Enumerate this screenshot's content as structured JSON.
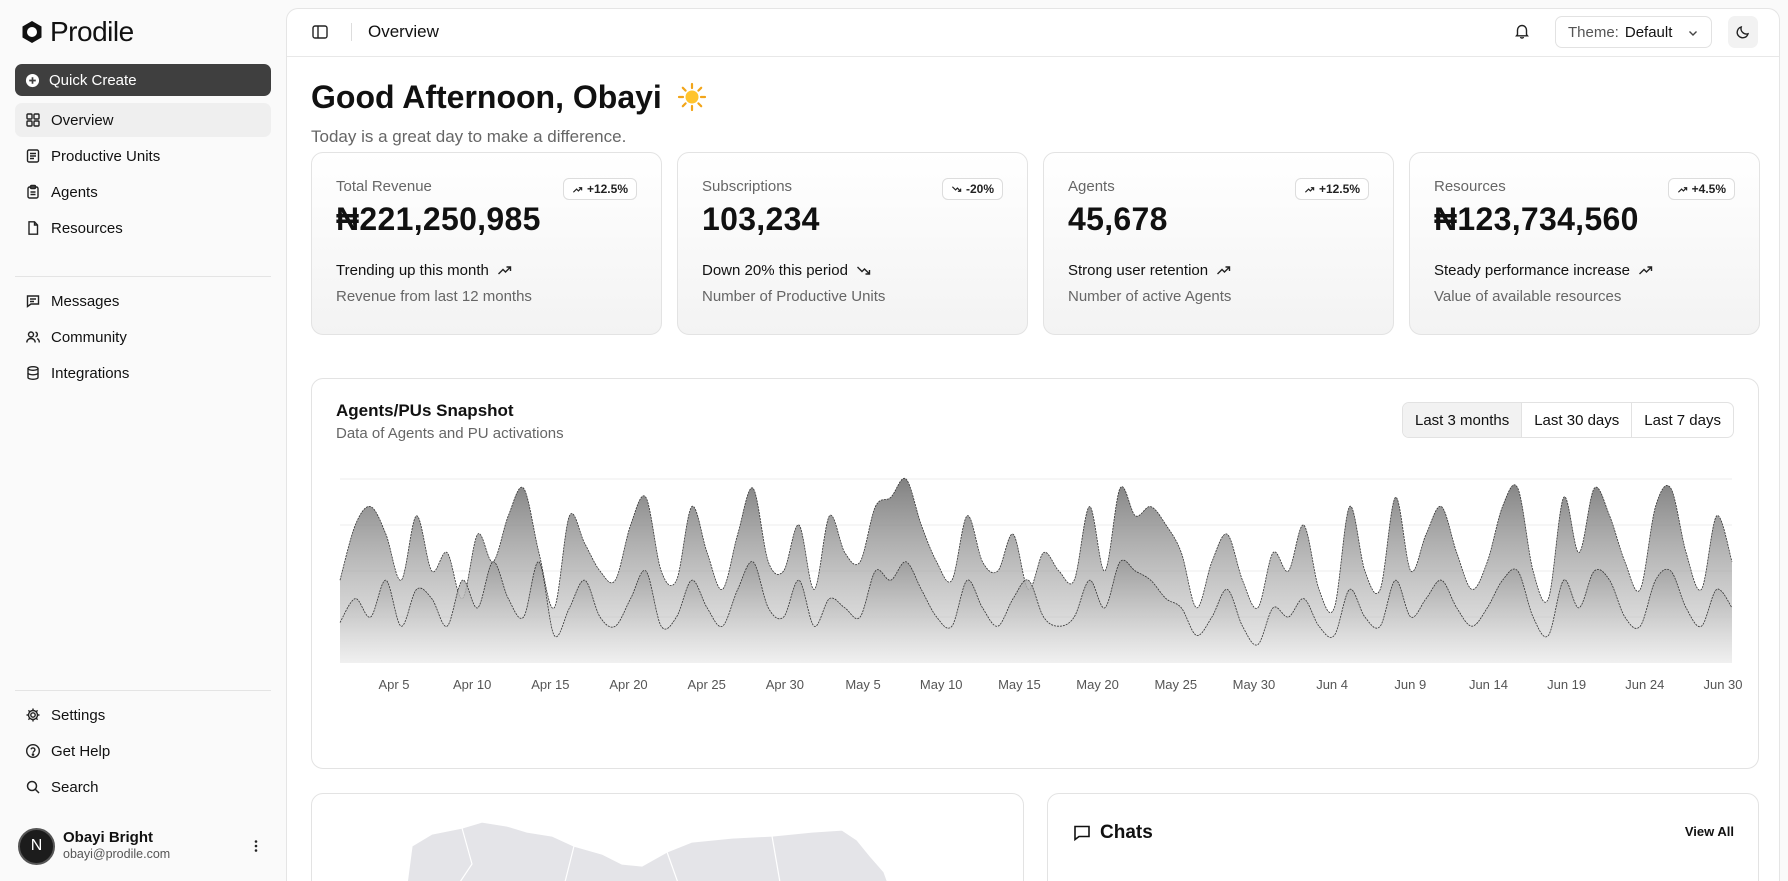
{
  "app": {
    "name": "Prodile"
  },
  "sidebar": {
    "quick_create": "Quick Create",
    "nav_main": [
      {
        "label": "Overview",
        "icon": "grid-icon",
        "active": true
      },
      {
        "label": "Productive Units",
        "icon": "document-icon"
      },
      {
        "label": "Agents",
        "icon": "clipboard-icon"
      },
      {
        "label": "Resources",
        "icon": "file-icon"
      }
    ],
    "nav_secondary": [
      {
        "label": "Messages",
        "icon": "message-icon"
      },
      {
        "label": "Community",
        "icon": "users-icon"
      },
      {
        "label": "Integrations",
        "icon": "database-icon"
      }
    ],
    "nav_footer": [
      {
        "label": "Settings",
        "icon": "gear-icon"
      },
      {
        "label": "Get Help",
        "icon": "help-icon"
      },
      {
        "label": "Search",
        "icon": "search-icon"
      }
    ],
    "user": {
      "initial": "N",
      "name": "Obayi Bright",
      "email": "obayi@prodile.com"
    }
  },
  "topbar": {
    "title": "Overview",
    "theme_label": "Theme:",
    "theme_value": "Default"
  },
  "greeting": {
    "title": "Good Afternoon, Obayi",
    "subtitle": "Today is a great day to make a difference."
  },
  "stats": [
    {
      "label": "Total Revenue",
      "value": "₦221,250,985",
      "badge": "+12.5%",
      "direction": "up",
      "trend": "Trending up this month",
      "description": "Revenue from last 12 months"
    },
    {
      "label": "Subscriptions",
      "value": "103,234",
      "badge": "-20%",
      "direction": "down",
      "trend": "Down 20% this period",
      "description": "Number of Productive Units"
    },
    {
      "label": "Agents",
      "value": "45,678",
      "badge": "+12.5%",
      "direction": "up",
      "trend": "Strong user retention",
      "description": "Number of active Agents"
    },
    {
      "label": "Resources",
      "value": "₦123,734,560",
      "badge": "+4.5%",
      "direction": "up",
      "trend": "Steady performance increase",
      "description": "Value of available resources"
    }
  ],
  "snapshot": {
    "title": "Agents/PUs Snapshot",
    "subtitle": "Data of Agents and PU activations",
    "ranges": [
      "Last 3 months",
      "Last 30 days",
      "Last 7 days"
    ],
    "active_range": "Last 3 months"
  },
  "chart_data": {
    "type": "area",
    "x_tick_labels": [
      "Apr 5",
      "Apr 10",
      "Apr 15",
      "Apr 20",
      "Apr 25",
      "Apr 30",
      "May 5",
      "May 10",
      "May 15",
      "May 20",
      "May 25",
      "May 30",
      "Jun 4",
      "Jun 9",
      "Jun 14",
      "Jun 19",
      "Jun 24",
      "Jun 30"
    ],
    "x_range": [
      "Apr 1",
      "Jun 30"
    ],
    "grid": true,
    "series": [
      {
        "values": [
          0.45,
          0.75,
          0.85,
          0.7,
          0.45,
          0.8,
          0.5,
          0.6,
          0.35,
          0.7,
          0.55,
          0.8,
          0.95,
          0.6,
          0.3,
          0.8,
          0.65,
          0.5,
          0.45,
          0.75,
          0.9,
          0.5,
          0.45,
          0.85,
          0.6,
          0.4,
          0.7,
          0.95,
          0.55,
          0.5,
          0.75,
          0.4,
          0.8,
          0.6,
          0.55,
          0.85,
          0.9,
          1.0,
          0.75,
          0.55,
          0.45,
          0.8,
          0.55,
          0.5,
          0.7,
          0.4,
          0.6,
          0.5,
          0.45,
          0.85,
          0.5,
          0.95,
          0.8,
          0.85,
          0.75,
          0.6,
          0.3,
          0.55,
          0.7,
          0.45,
          0.3,
          0.6,
          0.5,
          0.75,
          0.4,
          0.3,
          0.85,
          0.5,
          0.4,
          0.9,
          0.5,
          0.7,
          0.85,
          0.6,
          0.4,
          0.55,
          0.85,
          0.95,
          0.5,
          0.35,
          0.9,
          0.6,
          0.95,
          0.8,
          0.55,
          0.4,
          0.85,
          0.95,
          0.6,
          0.4,
          0.8,
          0.55
        ]
      },
      {
        "values": [
          0.22,
          0.35,
          0.25,
          0.45,
          0.2,
          0.4,
          0.35,
          0.2,
          0.45,
          0.3,
          0.55,
          0.35,
          0.25,
          0.55,
          0.15,
          0.3,
          0.45,
          0.25,
          0.2,
          0.35,
          0.5,
          0.2,
          0.25,
          0.45,
          0.3,
          0.2,
          0.4,
          0.55,
          0.3,
          0.25,
          0.45,
          0.2,
          0.35,
          0.3,
          0.25,
          0.5,
          0.45,
          0.55,
          0.4,
          0.25,
          0.2,
          0.45,
          0.3,
          0.2,
          0.35,
          0.45,
          0.25,
          0.2,
          0.25,
          0.45,
          0.3,
          0.55,
          0.5,
          0.45,
          0.35,
          0.3,
          0.15,
          0.25,
          0.4,
          0.2,
          0.1,
          0.3,
          0.25,
          0.35,
          0.2,
          0.15,
          0.4,
          0.25,
          0.2,
          0.45,
          0.25,
          0.35,
          0.45,
          0.3,
          0.2,
          0.3,
          0.45,
          0.5,
          0.25,
          0.15,
          0.45,
          0.3,
          0.5,
          0.45,
          0.25,
          0.2,
          0.45,
          0.5,
          0.3,
          0.2,
          0.4,
          0.3
        ]
      }
    ]
  },
  "chats": {
    "title": "Chats",
    "view_all": "View All"
  },
  "colors": {
    "primary_button": "#3f3f3f",
    "area_fill": "#888888",
    "background": "#fafafa"
  }
}
